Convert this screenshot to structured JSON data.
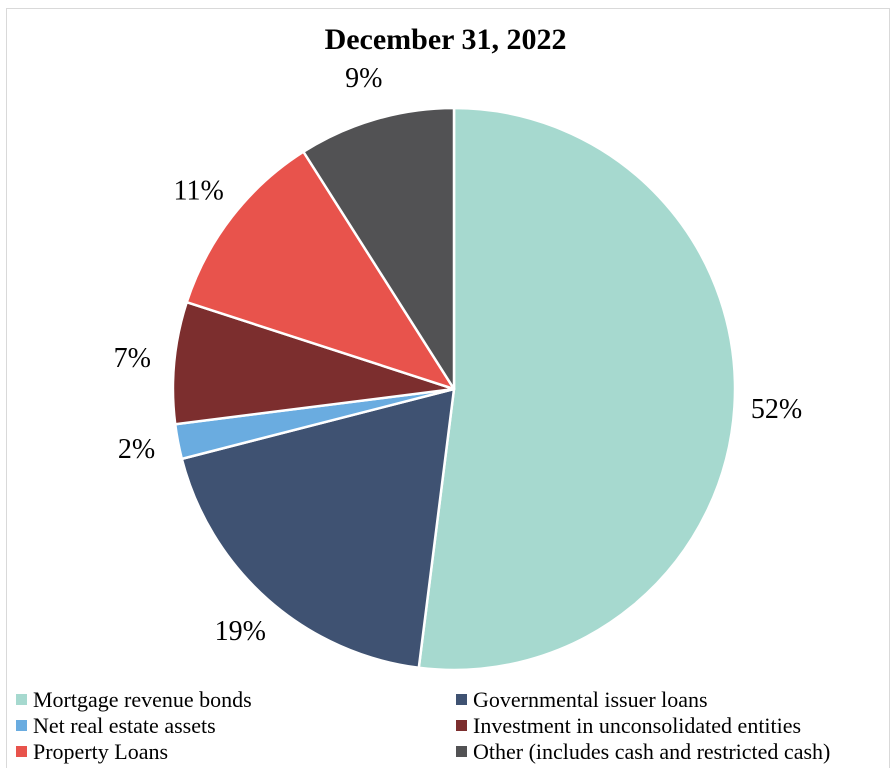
{
  "chart_data": {
    "type": "pie",
    "title": "December 31, 2022",
    "start_angle_deg": 0,
    "direction": "clockwise",
    "slices": [
      {
        "name": "Mortgage revenue bonds",
        "value": 52,
        "label": "52%",
        "color": "#a6d9cf"
      },
      {
        "name": "Governmental issuer loans",
        "value": 19,
        "label": "19%",
        "color": "#3f5272"
      },
      {
        "name": "Net real estate assets",
        "value": 2,
        "label": "2%",
        "color": "#6aace0"
      },
      {
        "name": "Investment in unconsolidated entities",
        "value": 7,
        "label": "7%",
        "color": "#7c2e2e"
      },
      {
        "name": "Property Loans",
        "value": 11,
        "label": "11%",
        "color": "#e8534c"
      },
      {
        "name": "Other (includes cash and restricted cash)",
        "value": 9,
        "label": "9%",
        "color": "#525254"
      }
    ],
    "legend_position": "bottom",
    "slice_border_color": "#ffffff"
  }
}
